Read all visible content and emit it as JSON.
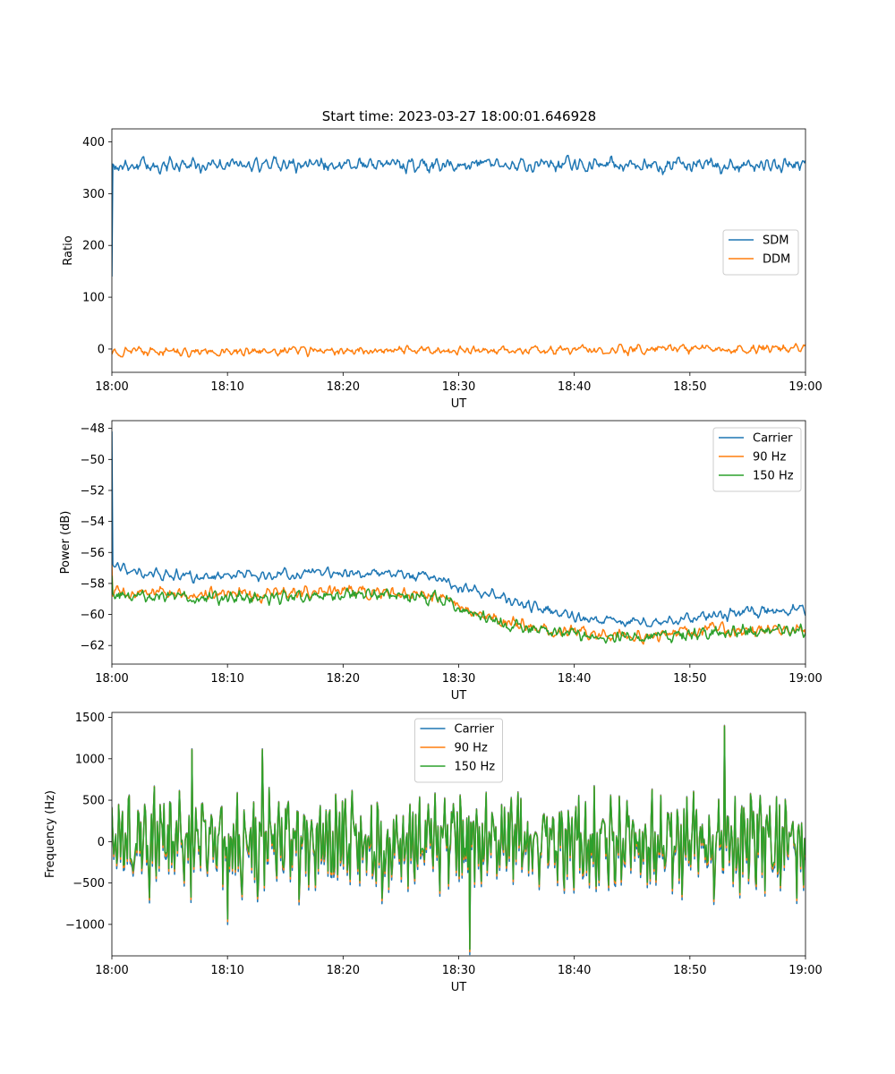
{
  "figure": {
    "title": "Start time: 2023-03-27 18:00:01.646928"
  },
  "colors": {
    "blue": "#1f77b4",
    "orange": "#ff7f0e",
    "green": "#2ca02c"
  },
  "chart_data": [
    {
      "type": "line",
      "title": "Start time: 2023-03-27 18:00:01.646928",
      "xlabel": "UT",
      "ylabel": "Ratio",
      "xlim": [
        "18:00",
        "19:00"
      ],
      "xticks": [
        "18:00",
        "18:10",
        "18:20",
        "18:30",
        "18:40",
        "18:50",
        "19:00"
      ],
      "ylim": [
        -45,
        425
      ],
      "yticks": [
        0,
        100,
        200,
        300,
        400
      ],
      "ytick_labels": [
        "0",
        "100",
        "200",
        "300",
        "400"
      ],
      "grid": false,
      "legend": "center-right",
      "series": [
        {
          "name": "SDM",
          "color": "#1f77b4",
          "start": {
            "minute": 0,
            "value": 140
          },
          "shape": [
            [
              0.25,
              355
            ],
            [
              60,
              355
            ]
          ],
          "noise": 14
        },
        {
          "name": "DDM",
          "color": "#ff7f0e",
          "start": {
            "minute": 0,
            "value": -10
          },
          "shape": [
            [
              0.25,
              -5
            ],
            [
              60,
              0
            ]
          ],
          "noise": 9
        }
      ]
    },
    {
      "type": "line",
      "title": "",
      "xlabel": "UT",
      "ylabel": "Power (dB)",
      "xlim": [
        "18:00",
        "19:00"
      ],
      "xticks": [
        "18:00",
        "18:10",
        "18:20",
        "18:30",
        "18:40",
        "18:50",
        "19:00"
      ],
      "ylim": [
        -63.2,
        -47.5
      ],
      "yticks": [
        -62,
        -60,
        -58,
        -56,
        -54,
        -52,
        -50,
        -48
      ],
      "ytick_labels": [
        "−62",
        "−60",
        "−58",
        "−56",
        "−54",
        "−52",
        "−50",
        "−48"
      ],
      "grid": false,
      "legend": "top-right",
      "series": [
        {
          "name": "Carrier",
          "color": "#1f77b4",
          "start": {
            "minute": 0,
            "value": -48.2
          },
          "shape": [
            [
              0.3,
              -57
            ],
            [
              3,
              -57.4
            ],
            [
              10,
              -57.6
            ],
            [
              17,
              -57.3
            ],
            [
              27,
              -57.5
            ],
            [
              30,
              -58.2
            ],
            [
              35,
              -59.2
            ],
            [
              40,
              -60.1
            ],
            [
              45,
              -60.6
            ],
            [
              48,
              -60.4
            ],
            [
              55,
              -59.9
            ],
            [
              60,
              -59.7
            ]
          ],
          "noise": 0.35
        },
        {
          "name": "90 Hz",
          "color": "#ff7f0e",
          "start": {
            "minute": 0,
            "value": -56.8
          },
          "shape": [
            [
              1,
              -58.6
            ],
            [
              10,
              -58.8
            ],
            [
              20,
              -58.5
            ],
            [
              28,
              -58.8
            ],
            [
              30,
              -59.6
            ],
            [
              34,
              -60.5
            ],
            [
              38,
              -61.0
            ],
            [
              43,
              -61.3
            ],
            [
              47,
              -61.4
            ],
            [
              52,
              -61.0
            ],
            [
              60,
              -60.9
            ]
          ],
          "noise": 0.45
        },
        {
          "name": "150 Hz",
          "color": "#2ca02c",
          "start": {
            "minute": 0,
            "value": -57.5
          },
          "shape": [
            [
              1,
              -58.8
            ],
            [
              10,
              -59.0
            ],
            [
              20,
              -58.7
            ],
            [
              28,
              -58.9
            ],
            [
              30,
              -59.6
            ],
            [
              34,
              -60.6
            ],
            [
              38,
              -61.1
            ],
            [
              43,
              -61.5
            ],
            [
              47,
              -61.5
            ],
            [
              52,
              -61.2
            ],
            [
              60,
              -61.0
            ]
          ],
          "noise": 0.45
        }
      ]
    },
    {
      "type": "line",
      "title": "",
      "xlabel": "UT",
      "ylabel": "Frequency (Hz)",
      "xlim": [
        "18:00",
        "19:00"
      ],
      "xticks": [
        "18:00",
        "18:10",
        "18:20",
        "18:30",
        "18:40",
        "18:50",
        "19:00"
      ],
      "ylim": [
        -1380,
        1560
      ],
      "yticks": [
        -1000,
        -500,
        0,
        500,
        1000,
        1500
      ],
      "ytick_labels": [
        "−1000",
        "−500",
        "0",
        "500",
        "1000",
        "1500"
      ],
      "grid": false,
      "legend": "top-center",
      "series": [
        {
          "name": "Carrier",
          "color": "#1f77b4",
          "base_amplitude": 300,
          "offset": -65
        },
        {
          "name": "90 Hz",
          "color": "#ff7f0e",
          "base_amplitude": 300,
          "offset": -30
        },
        {
          "name": "150 Hz",
          "color": "#2ca02c",
          "base_amplitude": 300,
          "offset": 0
        }
      ],
      "peaks": [
        {
          "minute": 31.0,
          "value": -1250
        },
        {
          "minute": 53.0,
          "value": 1420
        },
        {
          "minute": 13.0,
          "value": 1130
        },
        {
          "minute": 6.9,
          "value": 1130
        },
        {
          "minute": 10.0,
          "value": -900
        }
      ]
    }
  ]
}
